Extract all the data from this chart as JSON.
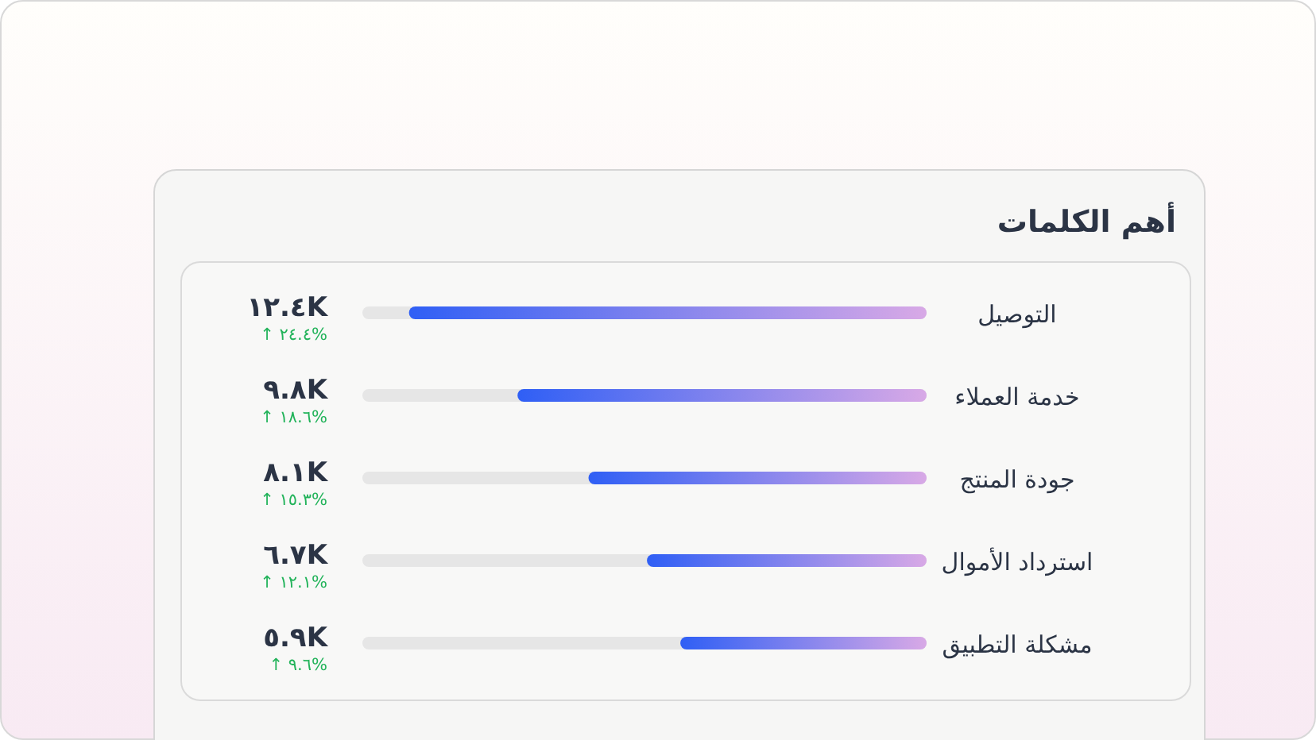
{
  "chart_data": {
    "type": "bar",
    "orientation": "horizontal",
    "title": "أهم الكلمات",
    "categories": [
      "التوصيل",
      "خدمة العملاء",
      "جودة المنتج",
      "استرداد الأموال",
      "مشكلة التطبيق"
    ],
    "values": [
      12.4,
      9.8,
      8.1,
      6.7,
      5.9
    ],
    "color": "#2f5ff5",
    "value_labels": [
      "١٢.٤K",
      "٩.٨K",
      "٨.١K",
      "٦.٧K",
      "٥.٩K"
    ],
    "annotations": [
      "↑ ٢٤.٤%",
      "↑ ١٨.٦%",
      "↑ ١٥.٣%",
      "↑ ١٢.١%",
      "↑ ٩.٦%"
    ]
  }
}
